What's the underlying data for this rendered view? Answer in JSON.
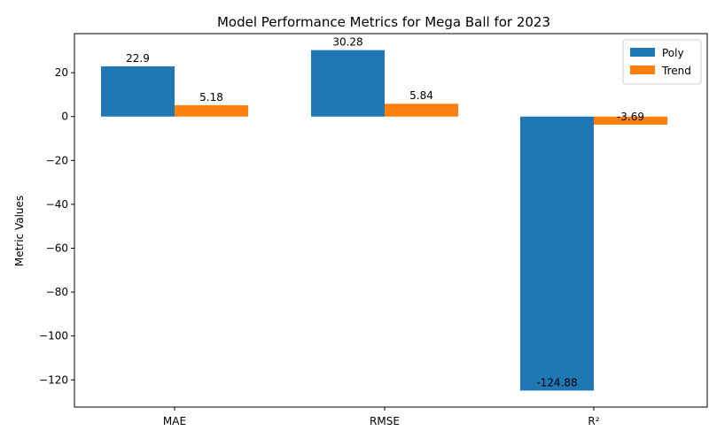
{
  "chart_data": {
    "type": "bar",
    "title": "Model Performance Metrics for Mega Ball for 2023",
    "xlabel": "",
    "ylabel": "Metric Values",
    "categories": [
      "MAE",
      "RMSE",
      "R²"
    ],
    "series": [
      {
        "name": "Poly",
        "values": [
          22.9,
          30.28,
          -124.88
        ],
        "color": "#1f77b4"
      },
      {
        "name": "Trend",
        "values": [
          5.18,
          5.84,
          -3.69
        ],
        "color": "#ff7f0e"
      }
    ],
    "ylim": [
      -132.4,
      37.8
    ],
    "yticks": [
      20,
      0,
      -20,
      -40,
      -60,
      -80,
      -100,
      -120
    ],
    "ytick_labels": [
      "20",
      "0",
      "−20",
      "−40",
      "−60",
      "−80",
      "−100",
      "−120"
    ],
    "data_labels": [
      [
        "22.9",
        "30.28",
        "-124.88"
      ],
      [
        "5.18",
        "5.84",
        "-3.69"
      ]
    ],
    "grid": false,
    "legend_position": "top-right"
  }
}
